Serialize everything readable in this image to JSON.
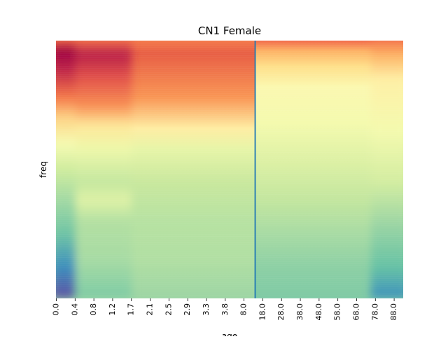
{
  "chart_data": {
    "type": "heatmap",
    "title": "CN1 Female",
    "xlabel": "age",
    "ylabel": "freq",
    "x_tick_labels": [
      "0.0",
      "0.4",
      "0.8",
      "1.2",
      "1.7",
      "2.1",
      "2.5",
      "2.9",
      "3.3",
      "3.8",
      "8.0",
      "18.0",
      "28.0",
      "38.0",
      "48.0",
      "58.0",
      "68.0",
      "78.0",
      "88.0"
    ],
    "y_tick_labels": [],
    "colormap": "Spectral_r",
    "colorbar": false,
    "vertical_marker": {
      "color": "#1f77b4",
      "position_between": [
        "8.0",
        "18.0"
      ]
    },
    "grid": false,
    "legend": "none"
  }
}
